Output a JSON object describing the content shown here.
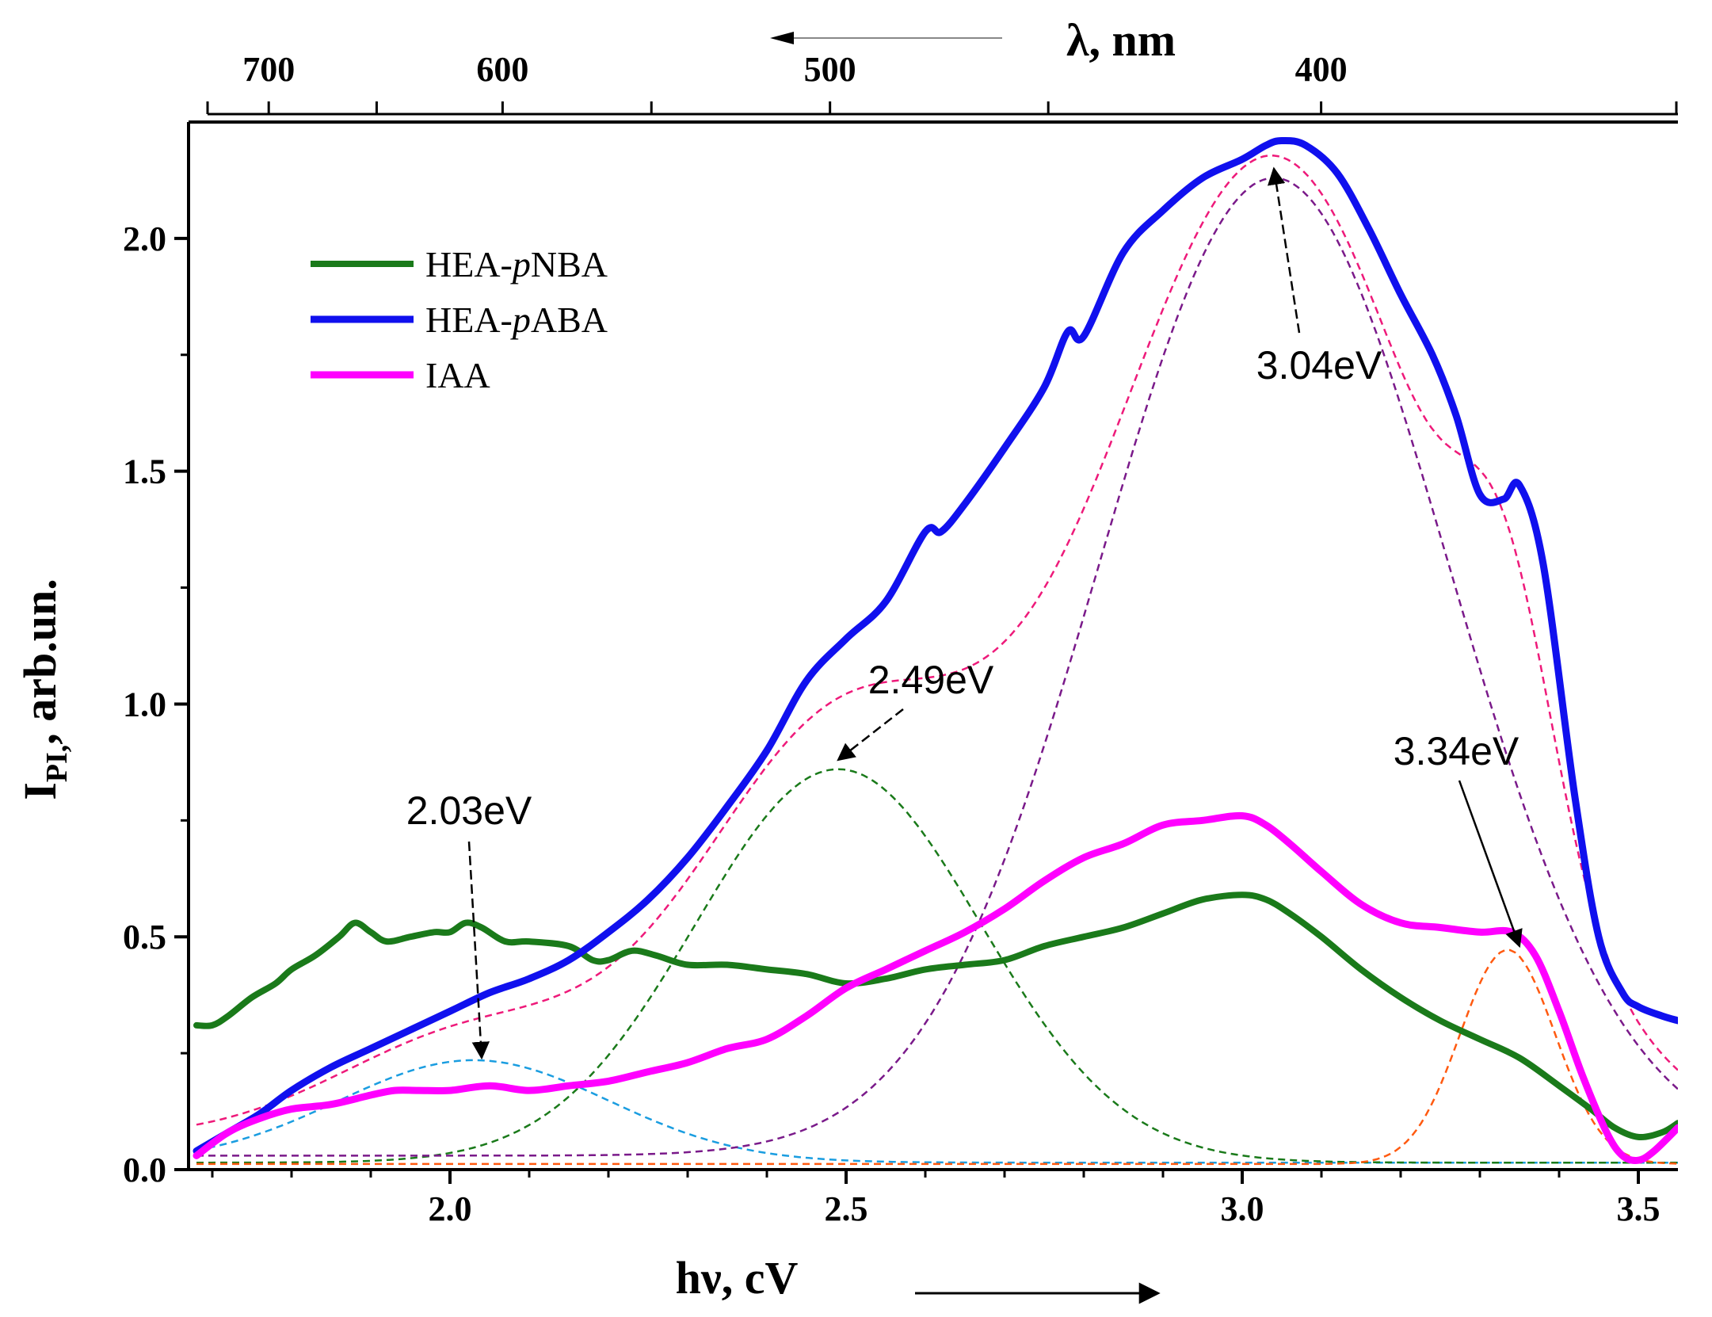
{
  "chart_data": {
    "type": "line",
    "title": "",
    "xlabel": "hν, cV",
    "ylabel_main": "I",
    "ylabel_sub": "PI,",
    "ylabel_rest": ", arb.un.",
    "top_axis_label": "λ, nm",
    "xlim": [
      1.67,
      3.55
    ],
    "ylim": [
      0,
      2.25
    ],
    "xticks": [
      2.0,
      2.5,
      3.0,
      3.5
    ],
    "xtick_labels": [
      "2.0",
      "2.5",
      "3.0",
      "3.5"
    ],
    "yticks": [
      0.0,
      0.5,
      1.0,
      1.5,
      2.0
    ],
    "ytick_labels": [
      "0.0",
      "0.5",
      "1.0",
      "1.5",
      "2.0"
    ],
    "top_ticks_nm": [
      700,
      600,
      500,
      400
    ],
    "top_tick_labels": [
      "700",
      "600",
      "500",
      "400"
    ],
    "top_minor_ticks_nm": [
      650,
      550,
      450
    ],
    "legend": {
      "placement": "top-left"
    },
    "series": [
      {
        "name": "HEA-pNBA",
        "legend_prefix": "HEA-",
        "legend_italic": "p",
        "legend_suffix": "NBA",
        "color": "#1a7a1a",
        "width": 8,
        "x": [
          1.68,
          1.7,
          1.72,
          1.75,
          1.78,
          1.8,
          1.83,
          1.86,
          1.88,
          1.9,
          1.92,
          1.95,
          1.98,
          2.0,
          2.02,
          2.04,
          2.07,
          2.1,
          2.15,
          2.18,
          2.2,
          2.23,
          2.26,
          2.3,
          2.35,
          2.4,
          2.45,
          2.5,
          2.55,
          2.6,
          2.65,
          2.7,
          2.75,
          2.8,
          2.85,
          2.9,
          2.95,
          3.0,
          3.03,
          3.06,
          3.1,
          3.15,
          3.2,
          3.25,
          3.3,
          3.35,
          3.4,
          3.44,
          3.47,
          3.5,
          3.53,
          3.55
        ],
        "y": [
          0.31,
          0.31,
          0.33,
          0.37,
          0.4,
          0.43,
          0.46,
          0.5,
          0.53,
          0.51,
          0.49,
          0.5,
          0.51,
          0.51,
          0.53,
          0.52,
          0.49,
          0.49,
          0.48,
          0.45,
          0.45,
          0.47,
          0.46,
          0.44,
          0.44,
          0.43,
          0.42,
          0.4,
          0.41,
          0.43,
          0.44,
          0.45,
          0.48,
          0.5,
          0.52,
          0.55,
          0.58,
          0.59,
          0.58,
          0.55,
          0.5,
          0.43,
          0.37,
          0.32,
          0.28,
          0.24,
          0.18,
          0.13,
          0.09,
          0.07,
          0.08,
          0.1
        ]
      },
      {
        "name": "HEA-pABA",
        "legend_prefix": "HEA-",
        "legend_italic": "p",
        "legend_suffix": "ABA",
        "color": "#1010ee",
        "width": 9,
        "x": [
          1.68,
          1.72,
          1.76,
          1.8,
          1.85,
          1.9,
          1.95,
          2.0,
          2.05,
          2.1,
          2.15,
          2.2,
          2.25,
          2.3,
          2.35,
          2.4,
          2.45,
          2.5,
          2.55,
          2.6,
          2.62,
          2.65,
          2.7,
          2.75,
          2.78,
          2.8,
          2.85,
          2.9,
          2.95,
          3.0,
          3.03,
          3.05,
          3.08,
          3.12,
          3.16,
          3.2,
          3.24,
          3.27,
          3.3,
          3.33,
          3.35,
          3.38,
          3.42,
          3.45,
          3.48,
          3.5,
          3.53,
          3.55
        ],
        "y": [
          0.04,
          0.08,
          0.12,
          0.17,
          0.22,
          0.26,
          0.3,
          0.34,
          0.38,
          0.41,
          0.45,
          0.51,
          0.58,
          0.67,
          0.78,
          0.9,
          1.05,
          1.14,
          1.22,
          1.37,
          1.37,
          1.43,
          1.55,
          1.68,
          1.8,
          1.79,
          1.97,
          2.06,
          2.13,
          2.17,
          2.2,
          2.21,
          2.2,
          2.14,
          2.02,
          1.88,
          1.75,
          1.62,
          1.45,
          1.44,
          1.47,
          1.3,
          0.8,
          0.5,
          0.38,
          0.35,
          0.33,
          0.32
        ]
      },
      {
        "name": "IAA",
        "legend_prefix": "IAA",
        "legend_italic": "",
        "legend_suffix": "",
        "color": "#ff00ff",
        "width": 9,
        "x": [
          1.68,
          1.72,
          1.76,
          1.8,
          1.85,
          1.9,
          1.93,
          1.96,
          2.0,
          2.05,
          2.1,
          2.15,
          2.2,
          2.25,
          2.3,
          2.35,
          2.4,
          2.45,
          2.5,
          2.55,
          2.6,
          2.65,
          2.7,
          2.75,
          2.8,
          2.85,
          2.9,
          2.95,
          3.0,
          3.03,
          3.06,
          3.1,
          3.15,
          3.2,
          3.25,
          3.3,
          3.34,
          3.37,
          3.4,
          3.43,
          3.46,
          3.48,
          3.5,
          3.52,
          3.55
        ],
        "y": [
          0.03,
          0.08,
          0.11,
          0.13,
          0.14,
          0.16,
          0.17,
          0.17,
          0.17,
          0.18,
          0.17,
          0.18,
          0.19,
          0.21,
          0.23,
          0.26,
          0.28,
          0.33,
          0.39,
          0.43,
          0.47,
          0.51,
          0.56,
          0.62,
          0.67,
          0.7,
          0.74,
          0.75,
          0.76,
          0.74,
          0.7,
          0.64,
          0.57,
          0.53,
          0.52,
          0.51,
          0.51,
          0.46,
          0.34,
          0.2,
          0.08,
          0.03,
          0.02,
          0.04,
          0.09
        ]
      }
    ],
    "fits": [
      {
        "name": "fit-2.03eV",
        "color": "#1a9de0",
        "center": 2.03,
        "amp": 0.22,
        "sigma": 0.17,
        "base": 0.015
      },
      {
        "name": "fit-2.49eV",
        "color": "#1a7a1a",
        "center": 2.49,
        "amp": 0.845,
        "sigma": 0.18,
        "base": 0.015
      },
      {
        "name": "fit-3.04eV",
        "color": "#7a1a8a",
        "center": 3.04,
        "amp": 2.1,
        "sigma": 0.22,
        "base": 0.03
      },
      {
        "name": "fit-3.34eV",
        "color": "#ff5a10",
        "center": 3.335,
        "amp": 0.46,
        "sigma": 0.06,
        "base": 0.012
      }
    ],
    "envelope": {
      "name": "fit-sum",
      "color": "#ee1a7a"
    },
    "annotations": [
      {
        "label": "2.03eV",
        "tip_x": 2.04,
        "tip_y": 0.24
      },
      {
        "label": "2.49eV",
        "tip_x": 2.49,
        "tip_y": 0.88
      },
      {
        "label": "3.04eV",
        "tip_x": 3.04,
        "tip_y": 2.15
      },
      {
        "label": "3.34eV",
        "tip_x": 3.35,
        "tip_y": 0.48
      }
    ]
  }
}
